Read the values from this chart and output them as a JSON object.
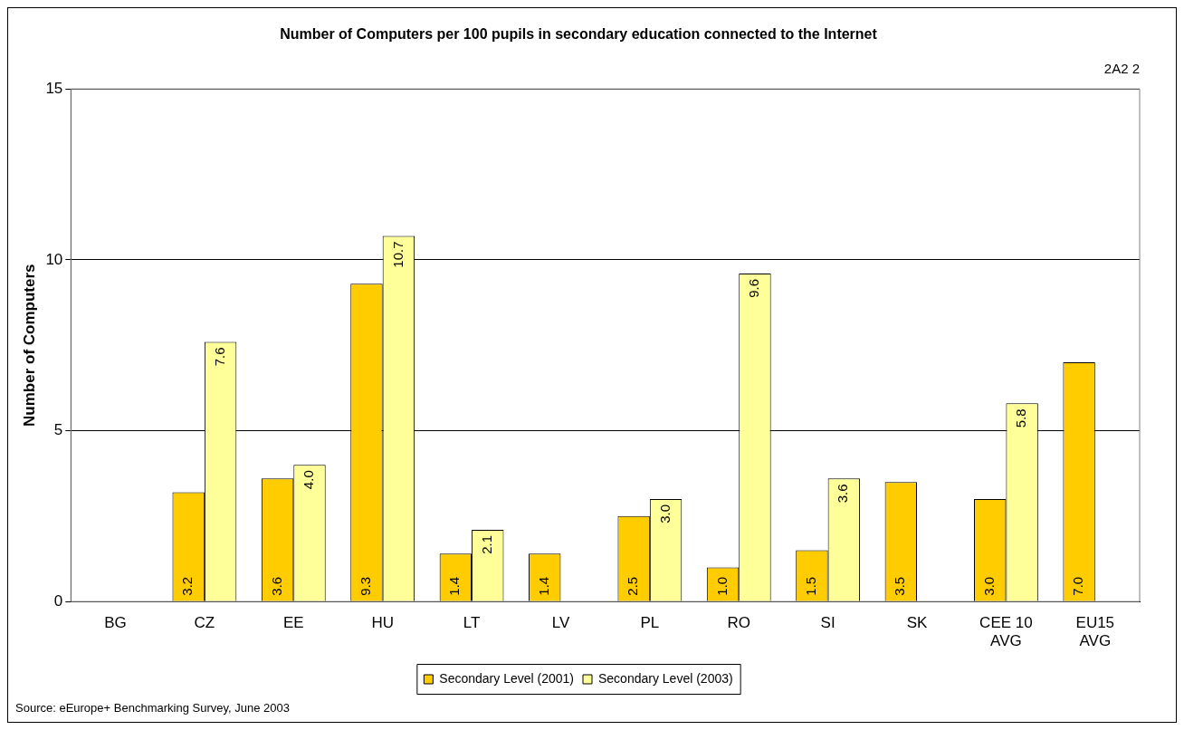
{
  "chart_data": {
    "type": "bar",
    "title": "Number of Computers per 100 pupils in secondary education connected to the Internet",
    "ylabel": "Number of Computers",
    "categories": [
      "BG",
      "CZ",
      "EE",
      "HU",
      "LT",
      "LV",
      "PL",
      "RO",
      "SI",
      "SK",
      "CEE 10\nAVG",
      "EU15\nAVG"
    ],
    "series": [
      {
        "name": "Secondary Level (2001)",
        "color": "#ffcc00",
        "values": [
          null,
          3.2,
          3.6,
          9.3,
          1.4,
          1.4,
          2.5,
          1.0,
          1.5,
          3.5,
          3.0,
          7.0
        ],
        "value_labels": [
          null,
          "3.2",
          "3.6",
          "9.3",
          "1.4",
          "1.4",
          "2.5",
          "1.0",
          "1.5",
          "3.5",
          "3.0",
          "7.0"
        ]
      },
      {
        "name": "Secondary Level (2003)",
        "color": "#ffff99",
        "values": [
          null,
          7.6,
          4.0,
          10.7,
          2.1,
          null,
          3.0,
          9.6,
          3.6,
          null,
          5.8,
          null
        ],
        "value_labels": [
          null,
          "7.6",
          "4.0",
          "10.7",
          "2.1",
          null,
          "3.0",
          "9.6",
          "3.6",
          null,
          "5.8",
          null
        ]
      }
    ],
    "ylim": [
      0,
      15
    ],
    "yticks": [
      0,
      5,
      10,
      15
    ],
    "grid": "y",
    "legend": "bottom",
    "annotations": [
      "2A2 2",
      "Source: eEurope+ Benchmarking Survey, June  2003"
    ]
  }
}
